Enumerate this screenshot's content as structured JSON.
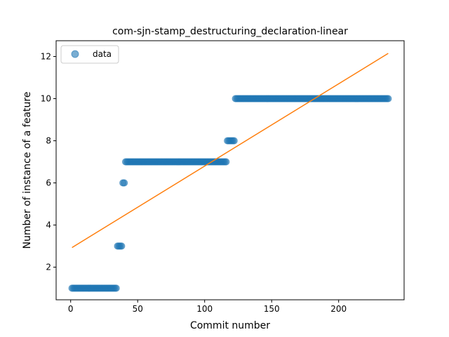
{
  "chart_data": {
    "type": "scatter",
    "title": "com-sjn-stamp_destructuring_declaration-linear",
    "xlabel": "Commit number",
    "ylabel": "Number of instance of a feature",
    "xlim": [
      -10.85,
      248.85
    ],
    "ylim": [
      0.45,
      12.75
    ],
    "xticks": [
      0,
      50,
      100,
      150,
      200
    ],
    "yticks": [
      2,
      4,
      6,
      8,
      10,
      12
    ],
    "grid": false,
    "legend": {
      "position": "top-left",
      "entries": [
        "data"
      ]
    },
    "colors": {
      "data": "#1f77b4",
      "fit": "#ff7f0e"
    },
    "series": [
      {
        "name": "data",
        "kind": "points",
        "segments": [
          {
            "x_start": 1,
            "x_end": 34,
            "y": 1
          },
          {
            "x_start": 35,
            "x_end": 38,
            "y": 3
          },
          {
            "x_start": 39,
            "x_end": 40,
            "y": 6
          },
          {
            "x_start": 41,
            "x_end": 116,
            "y": 7
          },
          {
            "x_start": 117,
            "x_end": 122,
            "y": 8
          },
          {
            "x_start": 123,
            "x_end": 237,
            "y": 10
          }
        ]
      },
      {
        "kind": "line",
        "x": [
          1,
          237
        ],
        "y": [
          2.93,
          12.15
        ]
      }
    ]
  }
}
